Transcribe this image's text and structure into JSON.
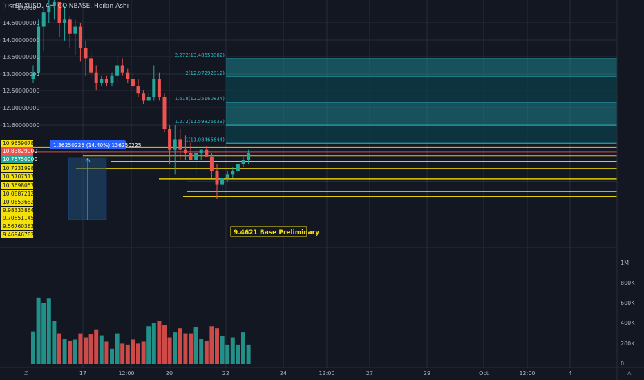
{
  "header": {
    "symbol_line": "SNXUSD, 4H, COINBASE, Heikin Ashi",
    "currency": "USD"
  },
  "price_axis": {
    "top_label": "15.0000000",
    "labels": [
      "14.50000000",
      "14.00000000",
      "13.50000000",
      "13.00000000",
      "12.50000000",
      "12.00000000",
      "11.60000000"
    ]
  },
  "left_price_tags": [
    {
      "text": "10.96590784",
      "kind": "yellow"
    },
    {
      "text": "10.83829000",
      "kind": "red"
    },
    {
      "text": "10.75750000",
      "kind": "teal"
    },
    {
      "text": "10.72319988",
      "kind": "yellow"
    },
    {
      "text": "10.57075135",
      "kind": "yellow"
    },
    {
      "text": "10.36980538",
      "kind": "yellow"
    },
    {
      "text": "10.08872128",
      "kind": "yellow"
    },
    {
      "text": "10.06536827",
      "kind": "yellow"
    },
    {
      "text": "9.98333864",
      "kind": "yellow"
    },
    {
      "text": "9.70851145",
      "kind": "yellow"
    },
    {
      "text": "9.56760363",
      "kind": "yellow"
    },
    {
      "text": "9.46946782",
      "kind": "yellow"
    }
  ],
  "fib_labels": [
    "2.272(13.48653802)",
    "2(12.97292812)",
    "1.618(12.25160834)",
    "1.272(11.59826633)",
    "1(11.08465644)"
  ],
  "measure_label": "1.36250225 (14.40%) 136250225",
  "annotation": "9.4621 Base Preliminary",
  "volume_axis": [
    "1M",
    "800K",
    "600K",
    "400K",
    "200K",
    "0"
  ],
  "time_axis": [
    "17",
    "12:00",
    "20",
    "22",
    "24",
    "12:00",
    "27",
    "29",
    "Oct",
    "12:00",
    "4"
  ],
  "bottom_left_icon": "Z",
  "bottom_right_icon": "A",
  "colors": {
    "bg": "#131722",
    "up": "#26a69a",
    "down": "#ef5350",
    "yellow": "#f5e10a",
    "fib": "#1a9aa5",
    "grid": "#2a2e39",
    "text": "#b2b5be"
  },
  "chart_data": {
    "type": "candlestick",
    "style": "Heikin Ashi",
    "ylim": [
      9.3,
      15.05
    ],
    "candles": [
      {
        "o": 12.9,
        "h": 13.3,
        "l": 12.8,
        "c": 13.1,
        "v": 320
      },
      {
        "o": 13.1,
        "h": 14.6,
        "l": 13.0,
        "c": 14.4,
        "v": 650
      },
      {
        "o": 14.4,
        "h": 15.0,
        "l": 13.7,
        "c": 14.8,
        "v": 600
      },
      {
        "o": 14.8,
        "h": 15.2,
        "l": 14.5,
        "c": 15.0,
        "v": 640
      },
      {
        "o": 15.0,
        "h": 15.2,
        "l": 14.6,
        "c": 15.1,
        "v": 420
      },
      {
        "o": 15.1,
        "h": 15.1,
        "l": 14.1,
        "c": 14.5,
        "v": 300
      },
      {
        "o": 14.5,
        "h": 15.0,
        "l": 14.0,
        "c": 14.6,
        "v": 250
      },
      {
        "o": 14.6,
        "h": 14.7,
        "l": 13.8,
        "c": 14.2,
        "v": 230
      },
      {
        "o": 14.2,
        "h": 14.6,
        "l": 13.6,
        "c": 14.4,
        "v": 240
      },
      {
        "o": 14.4,
        "h": 14.5,
        "l": 13.4,
        "c": 13.8,
        "v": 300
      },
      {
        "o": 13.8,
        "h": 14.0,
        "l": 13.0,
        "c": 13.5,
        "v": 260
      },
      {
        "o": 13.5,
        "h": 13.7,
        "l": 12.9,
        "c": 13.1,
        "v": 290
      },
      {
        "o": 13.1,
        "h": 13.3,
        "l": 12.6,
        "c": 12.8,
        "v": 340
      },
      {
        "o": 12.8,
        "h": 13.0,
        "l": 12.7,
        "c": 12.9,
        "v": 280
      },
      {
        "o": 12.9,
        "h": 13.0,
        "l": 12.7,
        "c": 12.8,
        "v": 220
      },
      {
        "o": 12.8,
        "h": 13.1,
        "l": 12.7,
        "c": 13.0,
        "v": 150
      },
      {
        "o": 13.0,
        "h": 13.6,
        "l": 12.8,
        "c": 13.3,
        "v": 300
      },
      {
        "o": 13.3,
        "h": 13.5,
        "l": 13.0,
        "c": 13.1,
        "v": 200
      },
      {
        "o": 13.1,
        "h": 13.2,
        "l": 12.8,
        "c": 12.9,
        "v": 190
      },
      {
        "o": 12.9,
        "h": 13.1,
        "l": 12.6,
        "c": 12.7,
        "v": 240
      },
      {
        "o": 12.7,
        "h": 12.9,
        "l": 12.4,
        "c": 12.5,
        "v": 200
      },
      {
        "o": 12.5,
        "h": 12.6,
        "l": 12.2,
        "c": 12.3,
        "v": 220
      },
      {
        "o": 12.3,
        "h": 12.5,
        "l": 12.3,
        "c": 12.4,
        "v": 370
      },
      {
        "o": 12.4,
        "h": 13.3,
        "l": 12.3,
        "c": 12.9,
        "v": 400
      },
      {
        "o": 12.9,
        "h": 13.1,
        "l": 12.3,
        "c": 12.4,
        "v": 420
      },
      {
        "o": 12.4,
        "h": 12.5,
        "l": 11.4,
        "c": 11.5,
        "v": 380
      },
      {
        "o": 11.5,
        "h": 11.6,
        "l": 10.5,
        "c": 10.9,
        "v": 260
      },
      {
        "o": 10.9,
        "h": 11.6,
        "l": 10.2,
        "c": 11.2,
        "v": 310
      },
      {
        "o": 11.2,
        "h": 11.5,
        "l": 10.6,
        "c": 10.9,
        "v": 350
      },
      {
        "o": 10.9,
        "h": 11.3,
        "l": 10.6,
        "c": 10.8,
        "v": 300
      },
      {
        "o": 10.8,
        "h": 11.1,
        "l": 10.6,
        "c": 10.6,
        "v": 300
      },
      {
        "o": 10.6,
        "h": 11.0,
        "l": 10.2,
        "c": 10.8,
        "v": 360
      },
      {
        "o": 10.8,
        "h": 10.9,
        "l": 10.6,
        "c": 10.9,
        "v": 250
      },
      {
        "o": 10.9,
        "h": 11.0,
        "l": 10.7,
        "c": 10.7,
        "v": 230
      },
      {
        "o": 10.7,
        "h": 10.8,
        "l": 10.1,
        "c": 10.3,
        "v": 370
      },
      {
        "o": 10.3,
        "h": 10.5,
        "l": 9.5,
        "c": 9.9,
        "v": 350
      },
      {
        "o": 9.9,
        "h": 10.1,
        "l": 9.7,
        "c": 10.1,
        "v": 270
      },
      {
        "o": 10.1,
        "h": 10.3,
        "l": 10.0,
        "c": 10.2,
        "v": 190
      },
      {
        "o": 10.2,
        "h": 10.4,
        "l": 10.1,
        "c": 10.3,
        "v": 260
      },
      {
        "o": 10.3,
        "h": 10.6,
        "l": 10.2,
        "c": 10.5,
        "v": 190
      },
      {
        "o": 10.5,
        "h": 10.7,
        "l": 10.4,
        "c": 10.6,
        "v": 310
      },
      {
        "o": 10.6,
        "h": 10.9,
        "l": 10.5,
        "c": 10.8,
        "v": 190
      }
    ],
    "horizontal_levels": [
      10.96590784,
      10.83829,
      10.72319988,
      10.57075135,
      10.36980538,
      10.08872128,
      10.06536827,
      9.98333864,
      9.70851145,
      9.56760363,
      9.46946782
    ],
    "fib_levels": [
      13.48653802,
      12.97292812,
      12.25160834,
      11.59826633,
      11.08465644
    ]
  }
}
